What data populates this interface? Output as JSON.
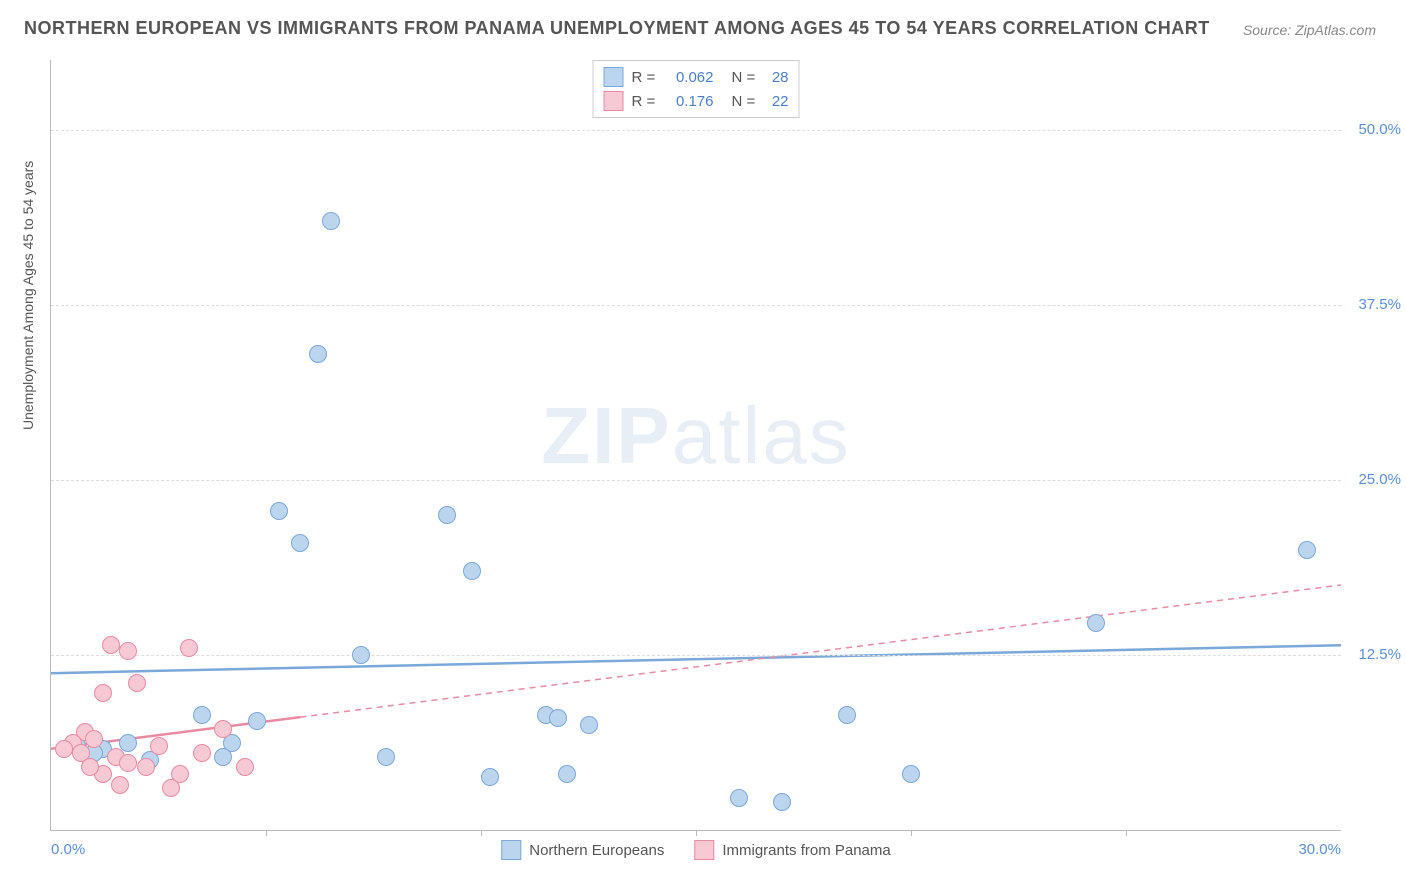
{
  "title": "NORTHERN EUROPEAN VS IMMIGRANTS FROM PANAMA UNEMPLOYMENT AMONG AGES 45 TO 54 YEARS CORRELATION CHART",
  "source": "Source: ZipAtlas.com",
  "watermark_bold": "ZIP",
  "watermark_light": "atlas",
  "ylabel": "Unemployment Among Ages 45 to 54 years",
  "chart": {
    "type": "scatter",
    "xlim": [
      0,
      30
    ],
    "ylim": [
      0,
      55
    ],
    "x_ticks_every_pct": 5,
    "y_gridlines_pct": [
      12.5,
      25,
      37.5,
      50
    ],
    "y_tick_labels": [
      "12.5%",
      "25.0%",
      "37.5%",
      "50.0%"
    ],
    "x_tick_labels": {
      "left": "0.0%",
      "right": "30.0%"
    },
    "background_color": "#ffffff",
    "grid_color": "#dddddd",
    "axis_color": "#bbbbbb",
    "series": [
      {
        "name": "Northern Europeans",
        "fill": "#bcd5ef",
        "stroke": "#7aa8d8",
        "marker_radius": 9,
        "R": "0.062",
        "N": "28",
        "trend": {
          "x1": 0,
          "y1": 11.2,
          "x2": 30,
          "y2": 13.2,
          "solid_until_x": 30,
          "width": 2.5,
          "dash": null
        },
        "points": [
          [
            6.5,
            43.5
          ],
          [
            6.2,
            34.0
          ],
          [
            5.3,
            22.8
          ],
          [
            5.8,
            20.5
          ],
          [
            9.2,
            22.5
          ],
          [
            9.8,
            18.5
          ],
          [
            29.2,
            20.0
          ],
          [
            24.3,
            14.8
          ],
          [
            20.0,
            4.0
          ],
          [
            18.5,
            8.2
          ],
          [
            16.0,
            2.3
          ],
          [
            17.0,
            2.0
          ],
          [
            12.0,
            4.0
          ],
          [
            12.5,
            7.5
          ],
          [
            11.5,
            8.2
          ],
          [
            11.8,
            8.0
          ],
          [
            10.2,
            3.8
          ],
          [
            7.8,
            5.2
          ],
          [
            7.2,
            12.5
          ],
          [
            4.2,
            6.2
          ],
          [
            4.8,
            7.8
          ],
          [
            3.5,
            8.2
          ],
          [
            4.0,
            5.2
          ],
          [
            2.3,
            5.0
          ],
          [
            1.8,
            6.2
          ],
          [
            1.2,
            5.8
          ],
          [
            1.0,
            5.5
          ],
          [
            0.6,
            6.0
          ]
        ]
      },
      {
        "name": "Immigrants from Panama",
        "fill": "#f6c9d4",
        "stroke": "#e88aa2",
        "marker_radius": 9,
        "R": "0.176",
        "N": "22",
        "trend": {
          "x1": 0,
          "y1": 5.8,
          "x2": 30,
          "y2": 17.5,
          "solid_until_x": 5.8,
          "width": 2.5,
          "dash": "6,5"
        },
        "points": [
          [
            1.4,
            13.2
          ],
          [
            1.8,
            12.8
          ],
          [
            3.2,
            13.0
          ],
          [
            2.0,
            10.5
          ],
          [
            1.2,
            9.8
          ],
          [
            0.8,
            7.0
          ],
          [
            0.5,
            6.2
          ],
          [
            0.3,
            5.8
          ],
          [
            0.7,
            5.5
          ],
          [
            1.0,
            6.5
          ],
          [
            1.5,
            5.2
          ],
          [
            1.8,
            4.8
          ],
          [
            2.5,
            6.0
          ],
          [
            2.2,
            4.5
          ],
          [
            3.0,
            4.0
          ],
          [
            3.5,
            5.5
          ],
          [
            4.0,
            7.2
          ],
          [
            4.5,
            4.5
          ],
          [
            1.6,
            3.2
          ],
          [
            2.8,
            3.0
          ],
          [
            1.2,
            4.0
          ],
          [
            0.9,
            4.5
          ]
        ]
      }
    ]
  },
  "colors": {
    "tick_text": "#5a8fd6",
    "title_text": "#555555",
    "source_text": "#888888"
  }
}
